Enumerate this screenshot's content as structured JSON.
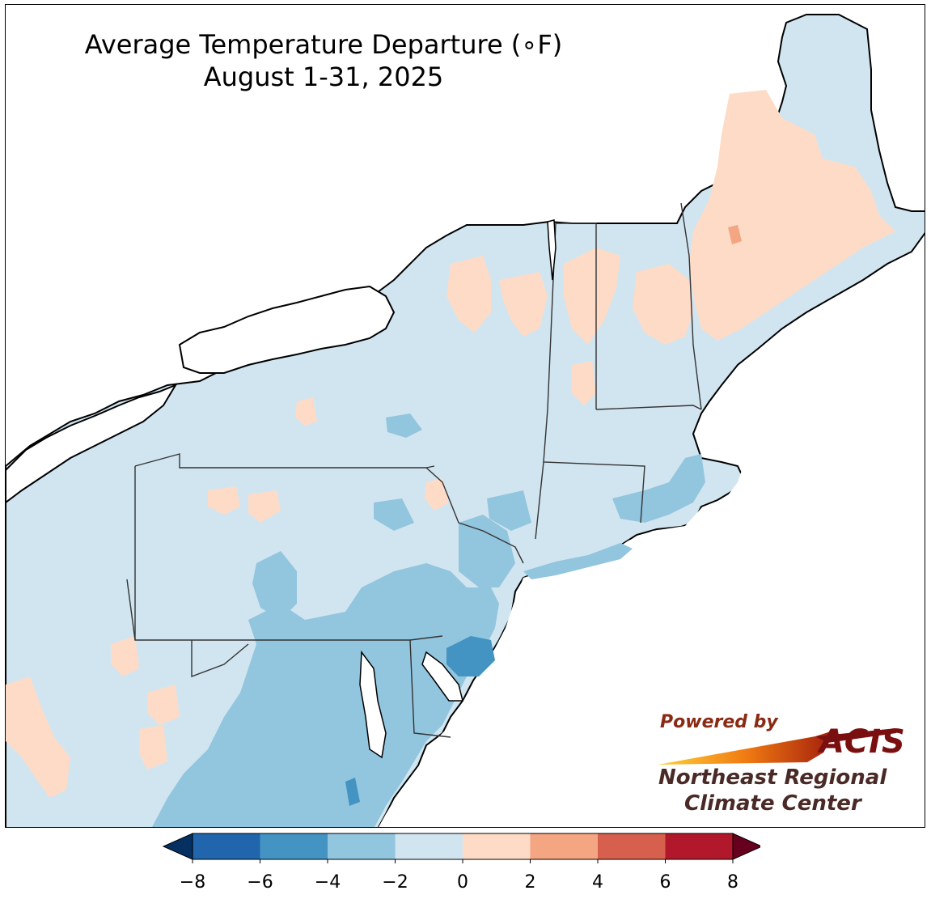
{
  "title": {
    "line1": "Average Temperature Departure (∘F)",
    "line2": "August 1-31, 2025"
  },
  "legend": {
    "ticks": [
      "−8",
      "−6",
      "−4",
      "−2",
      "0",
      "2",
      "4",
      "6",
      "8"
    ],
    "tick_values": [
      -8,
      -6,
      -4,
      -2,
      0,
      2,
      4,
      6,
      8
    ],
    "colors": [
      "#2166ac",
      "#4393c3",
      "#92c5de",
      "#d1e5f0",
      "#fddbc7",
      "#f4a582",
      "#d6604d",
      "#b2182b"
    ],
    "under_color": "#053061",
    "over_color": "#67001f",
    "extend": "both"
  },
  "map": {
    "region": "Northeast United States",
    "land_default_color": "#d1e5f0",
    "water_color": "#ffffff",
    "border_color": "#000000",
    "county_line_color": "#999999"
  },
  "logo": {
    "powered": "Powered by",
    "acis": "ACIS",
    "org_line1": "Northeast Regional",
    "org_line2": "Climate Center"
  }
}
